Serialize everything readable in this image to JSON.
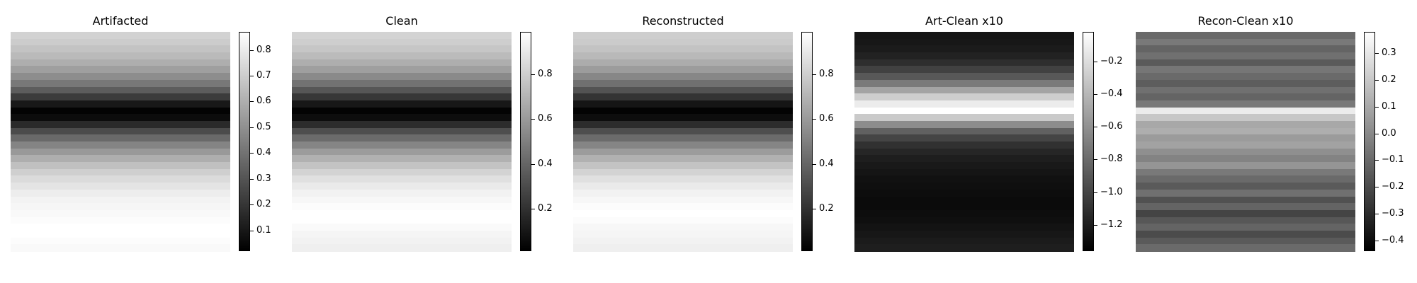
{
  "chart_data": [
    {
      "type": "heatmap",
      "title": "Artifacted",
      "colormap": "gray",
      "colorbar": {
        "min": 0.02,
        "max": 0.87,
        "ticks": [
          0.1,
          0.2,
          0.3,
          0.4,
          0.5,
          0.6,
          0.7,
          0.8
        ]
      },
      "row_profile": [
        0.72,
        0.7,
        0.67,
        0.64,
        0.6,
        0.55,
        0.49,
        0.42,
        0.33,
        0.22,
        0.1,
        0.03,
        0.06,
        0.16,
        0.27,
        0.37,
        0.46,
        0.53,
        0.6,
        0.66,
        0.71,
        0.75,
        0.78,
        0.81,
        0.83,
        0.84,
        0.85,
        0.86,
        0.87,
        0.87,
        0.86,
        0.85
      ]
    },
    {
      "type": "heatmap",
      "title": "Clean",
      "colormap": "gray",
      "colorbar": {
        "min": 0.01,
        "max": 0.99,
        "ticks": [
          0.2,
          0.4,
          0.6,
          0.8
        ]
      },
      "row_profile": [
        0.82,
        0.8,
        0.77,
        0.73,
        0.68,
        0.62,
        0.54,
        0.45,
        0.34,
        0.22,
        0.1,
        0.02,
        0.06,
        0.18,
        0.31,
        0.42,
        0.52,
        0.61,
        0.69,
        0.76,
        0.82,
        0.87,
        0.91,
        0.94,
        0.96,
        0.98,
        0.99,
        0.99,
        0.97,
        0.95,
        0.94,
        0.93
      ]
    },
    {
      "type": "heatmap",
      "title": "Reconstructed",
      "colormap": "gray",
      "colorbar": {
        "min": 0.01,
        "max": 0.99,
        "ticks": [
          0.2,
          0.4,
          0.6,
          0.8
        ]
      },
      "row_profile": [
        0.8,
        0.79,
        0.76,
        0.72,
        0.67,
        0.61,
        0.53,
        0.44,
        0.33,
        0.21,
        0.09,
        0.02,
        0.06,
        0.18,
        0.31,
        0.42,
        0.52,
        0.61,
        0.69,
        0.76,
        0.82,
        0.87,
        0.91,
        0.94,
        0.96,
        0.98,
        0.99,
        0.98,
        0.96,
        0.95,
        0.94,
        0.93
      ]
    },
    {
      "type": "heatmap",
      "title": "Art-Clean x10",
      "colormap": "gray",
      "colorbar": {
        "min": -1.36,
        "max": -0.02,
        "ticks": [
          -0.2,
          -0.4,
          -0.6,
          -0.8,
          -1.0,
          -1.2
        ]
      },
      "row_profile": [
        -1.25,
        -1.24,
        -1.22,
        -1.18,
        -1.12,
        -1.02,
        -0.9,
        -0.72,
        -0.5,
        -0.28,
        -0.12,
        -0.02,
        -0.3,
        -0.62,
        -0.85,
        -1.0,
        -1.1,
        -1.16,
        -1.2,
        -1.23,
        -1.25,
        -1.27,
        -1.28,
        -1.29,
        -1.3,
        -1.3,
        -1.29,
        -1.28,
        -1.26,
        -1.24,
        -1.22,
        -1.2
      ]
    },
    {
      "type": "heatmap",
      "title": "Recon-Clean x10",
      "colormap": "gray",
      "colorbar": {
        "min": -0.44,
        "max": 0.38,
        "ticks": [
          0.3,
          0.2,
          0.1,
          0.0,
          -0.1,
          -0.2,
          -0.3,
          -0.4
        ]
      },
      "row_profile": [
        -0.1,
        -0.05,
        -0.12,
        -0.08,
        -0.15,
        -0.06,
        -0.1,
        -0.14,
        -0.08,
        -0.12,
        -0.05,
        0.32,
        0.2,
        0.1,
        0.12,
        0.06,
        0.08,
        0.02,
        -0.02,
        0.04,
        -0.05,
        -0.1,
        -0.15,
        -0.08,
        -0.18,
        -0.12,
        -0.22,
        -0.16,
        -0.12,
        -0.2,
        -0.15,
        -0.1
      ]
    }
  ]
}
